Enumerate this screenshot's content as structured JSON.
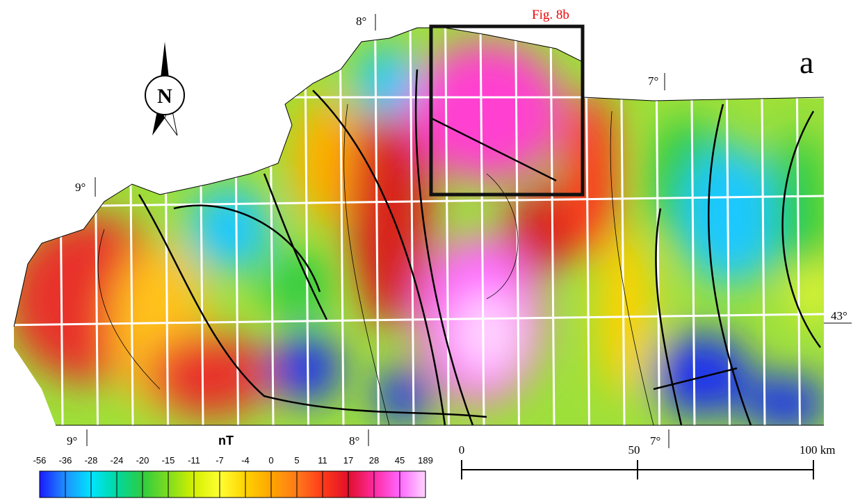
{
  "figure_label": "a",
  "inset_label": "Fig. 8b",
  "north_arrow": "N",
  "graticule": {
    "top": [
      "8°",
      "7°",
      "9°"
    ],
    "bottom": [
      "9°",
      "8°",
      "7°"
    ],
    "right": "43°"
  },
  "colorbar": {
    "unit": "nT",
    "ticks": [
      -56,
      -36,
      -28,
      -24,
      -20,
      -15,
      -11,
      -7,
      -4,
      0,
      5,
      11,
      17,
      28,
      45,
      189
    ],
    "colors": [
      "#1a1aff",
      "#1e90ff",
      "#00e5ff",
      "#00d8a0",
      "#2ecc40",
      "#7fdc1f",
      "#d4f000",
      "#ffff33",
      "#ffd200",
      "#ffa500",
      "#ff7a1a",
      "#ff3a1a",
      "#e0102a",
      "#ff2aa0",
      "#ff66ff",
      "#ffd6ff"
    ]
  },
  "scale_bar": {
    "ticks": [
      0,
      50
    ],
    "end_label": "100 km"
  }
}
